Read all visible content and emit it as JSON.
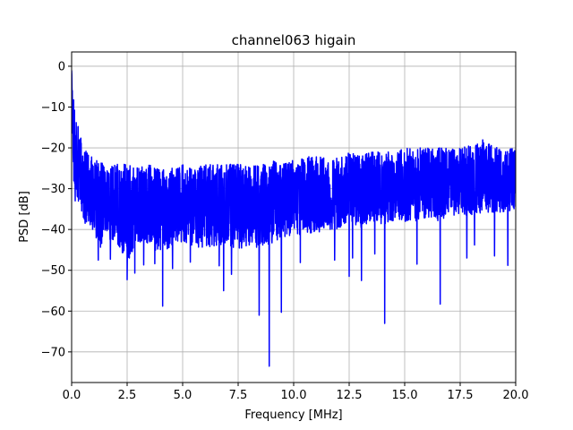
{
  "chart_data": {
    "type": "line",
    "title": "channel063 higain",
    "xlabel": "Frequency [MHz]",
    "ylabel": "PSD [dB]",
    "xlim": [
      0,
      20
    ],
    "ylim": [
      -77.5,
      3.5
    ],
    "xticks": [
      0,
      2.5,
      5,
      7.5,
      10,
      12.5,
      15,
      17.5,
      20
    ],
    "xtick_labels": [
      "0.0",
      "2.5",
      "5.0",
      "7.5",
      "10.0",
      "12.5",
      "15.0",
      "17.5",
      "20.0"
    ],
    "yticks": [
      0,
      -10,
      -20,
      -30,
      -40,
      -50,
      -60,
      -70
    ],
    "ytick_labels": [
      "0",
      "−10",
      "−20",
      "−30",
      "−40",
      "−50",
      "−60",
      "−70"
    ],
    "grid": true,
    "legend": "none",
    "series": [
      {
        "color": "#0000ff",
        "x": [
          0.0,
          0.05,
          0.1,
          0.15,
          0.2,
          0.3,
          0.4,
          0.5,
          0.6,
          0.7,
          0.8,
          0.9,
          1.0,
          1.25,
          1.5,
          2.0,
          2.5,
          3.0,
          3.5,
          4.0,
          4.5,
          5.0,
          5.5,
          6.0,
          6.5,
          7.0,
          7.5,
          8.0,
          8.5,
          9.0,
          9.5,
          10.0,
          10.5,
          11.0,
          11.5,
          12.0,
          12.5,
          13.0,
          13.5,
          14.0,
          14.5,
          15.0,
          15.5,
          16.0,
          16.5,
          17.0,
          17.5,
          18.0,
          18.5,
          19.0,
          19.5,
          20.0
        ],
        "upper": [
          -1,
          -3,
          -8,
          -10,
          -12,
          -15,
          -17,
          -19,
          -20,
          -21,
          -22,
          -21,
          -23,
          -23,
          -24,
          -24,
          -24,
          -25,
          -24,
          -25,
          -25,
          -24,
          -25,
          -24,
          -24,
          -24,
          -24,
          -24,
          -24,
          -23,
          -24,
          -23,
          -22,
          -22,
          -22,
          -22,
          -21,
          -22,
          -21,
          -21,
          -21,
          -20,
          -20,
          -20,
          -20,
          -20,
          -20,
          -19,
          -18,
          -19,
          -20,
          -20
        ],
        "lower": [
          -10,
          -20,
          -30,
          -35,
          -33,
          -34,
          -35,
          -36,
          -40,
          -38,
          -39,
          -40,
          -41,
          -45,
          -42,
          -43,
          -48,
          -43,
          -44,
          -46,
          -44,
          -43,
          -44,
          -45,
          -44,
          -44,
          -45,
          -44,
          -45,
          -44,
          -42,
          -42,
          -41,
          -41,
          -40,
          -40,
          -38,
          -40,
          -38,
          -39,
          -38,
          -38,
          -38,
          -37,
          -38,
          -37,
          -36,
          -37,
          -36,
          -36,
          -36,
          -35
        ],
        "dips": [
          [
            1.2,
            -47.5
          ],
          [
            1.75,
            -47.3
          ],
          [
            2.5,
            -52.3
          ],
          [
            2.85,
            -50.7
          ],
          [
            3.25,
            -48.7
          ],
          [
            3.75,
            -48.4
          ],
          [
            4.1,
            -58.8
          ],
          [
            4.55,
            -49.6
          ],
          [
            5.35,
            -48.0
          ],
          [
            6.65,
            -48.9
          ],
          [
            6.85,
            -55.0
          ],
          [
            7.2,
            -51.0
          ],
          [
            8.45,
            -61.0
          ],
          [
            8.9,
            -73.5
          ],
          [
            9.45,
            -60.3
          ],
          [
            10.3,
            -48.1
          ],
          [
            11.85,
            -47.5
          ],
          [
            12.5,
            -51.5
          ],
          [
            12.65,
            -47.0
          ],
          [
            13.05,
            -52.5
          ],
          [
            13.65,
            -46.0
          ],
          [
            14.1,
            -63.0
          ],
          [
            15.55,
            -48.5
          ],
          [
            16.6,
            -58.3
          ],
          [
            17.8,
            -47.0
          ],
          [
            18.15,
            -43.8
          ],
          [
            19.05,
            -46.5
          ],
          [
            19.65,
            -48.8
          ]
        ]
      }
    ]
  }
}
